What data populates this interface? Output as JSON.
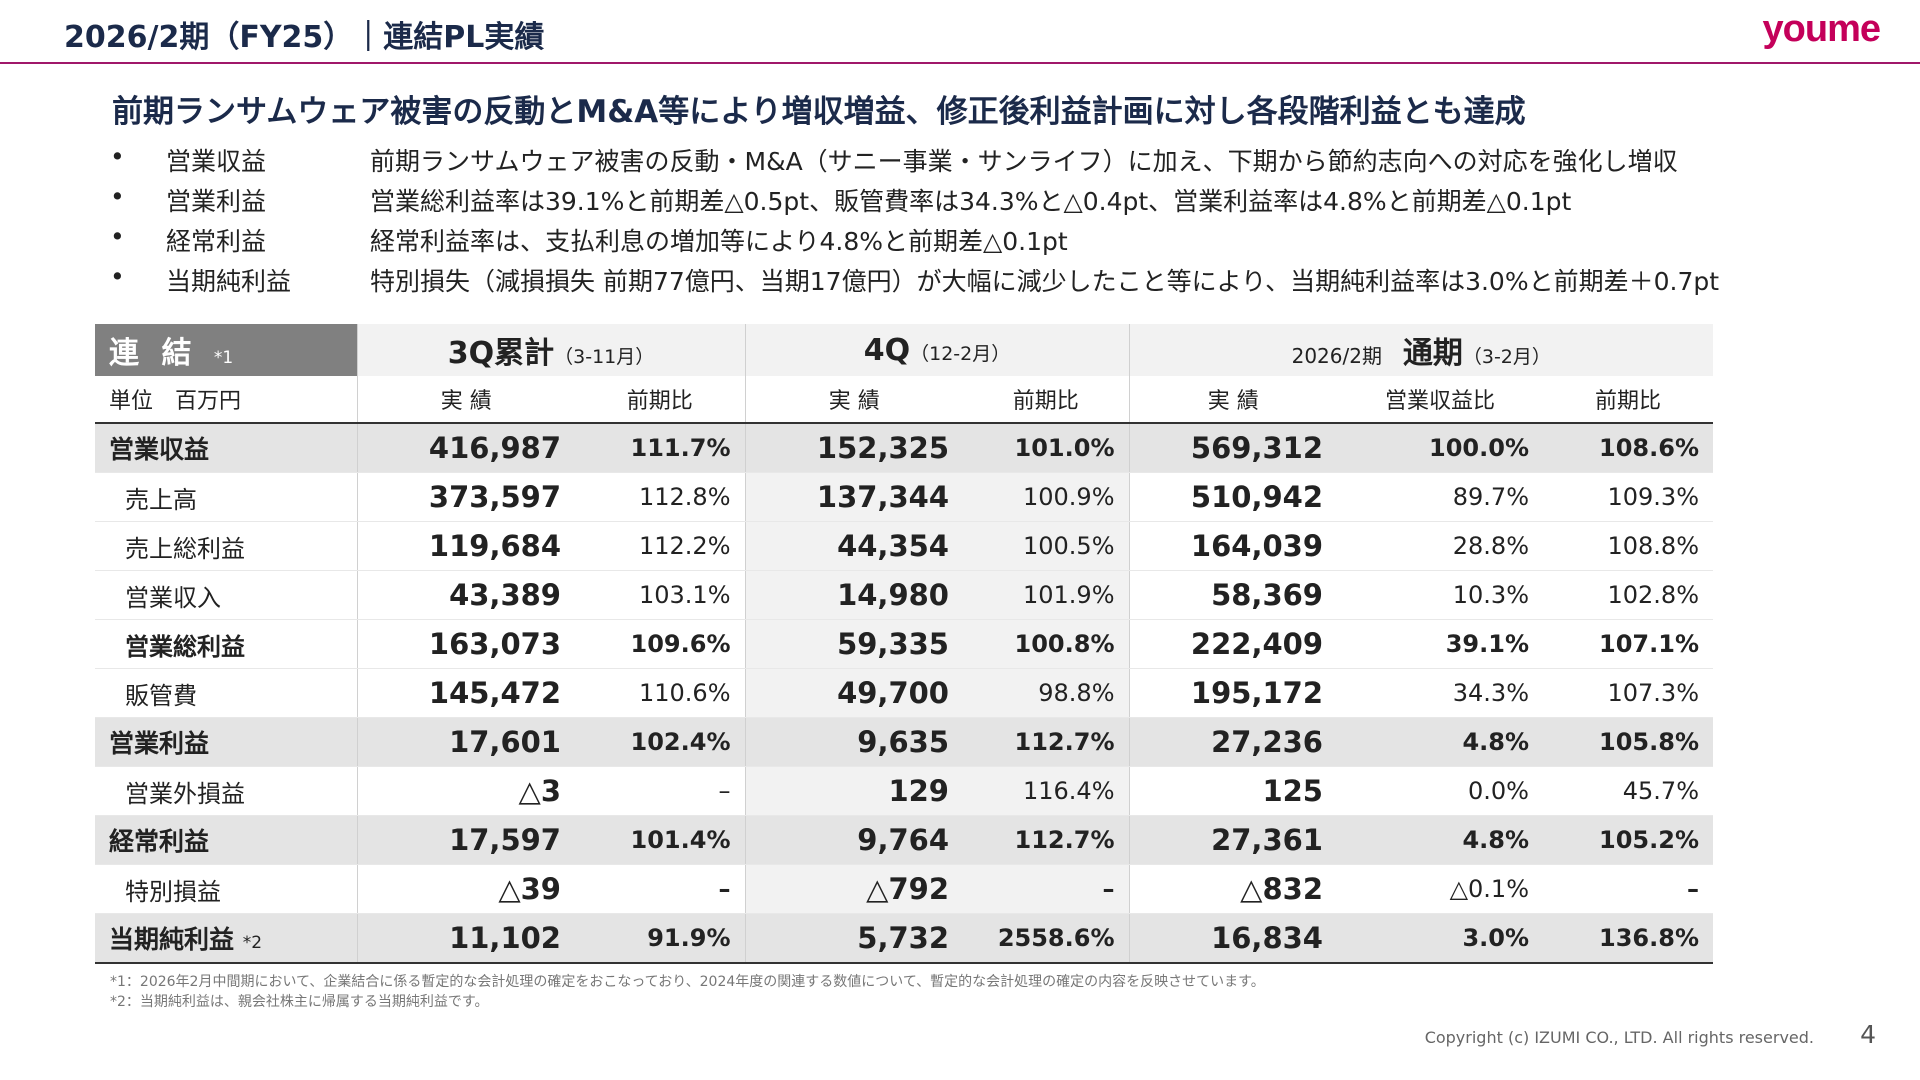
{
  "header": {
    "title": "2026/2期（FY25）｜連結PL実績",
    "logo": "youme"
  },
  "headline": "前期ランサムウェア被害の反動とM&A等により増収増益、修正後利益計画に対し各段階利益とも達成",
  "bullets": [
    {
      "dot": "•",
      "label": "営業収益",
      "text": "前期ランサムウェア被害の反動・M&A（サニー事業・サンライフ）に加え、下期から節約志向への対応を強化し増収"
    },
    {
      "dot": "•",
      "label": "営業利益",
      "text": "営業総利益率は39.1%と前期差△0.5pt、販管費率は34.3%と△0.4pt、営業利益率は4.8%と前期差△0.1pt"
    },
    {
      "dot": "•",
      "label": "経常利益",
      "text": "経常利益率は、支払利息の増加等により4.8%と前期差△0.1pt"
    },
    {
      "dot": "•",
      "label": "当期純利益",
      "text": "特別損失（減損損失 前期77億円、当期17億円）が大幅に減少したこと等により、当期純利益率は3.0%と前期差＋0.7pt"
    }
  ],
  "table": {
    "corner_label": "連 結",
    "corner_note": "*1",
    "unit_label": "単位　百万円",
    "groups": {
      "q3": {
        "title": "3Q累計",
        "sub": "（3-11月）"
      },
      "q4": {
        "title": "4Q",
        "sub": "（12-2月）"
      },
      "fy": {
        "year": "2026/2期",
        "title": "通期",
        "sub": "（3-2月）"
      }
    },
    "col_labels": {
      "actual": "実 績",
      "yoy": "前期比",
      "ratio": "営業収益比"
    },
    "rows": [
      {
        "label": "営業収益",
        "note": "",
        "q3": "416,987",
        "q3_yoy": "111.7%",
        "q4": "152,325",
        "q4_yoy": "101.0%",
        "fy": "569,312",
        "fy_ratio": "100.0%",
        "fy_yoy": "108.6%"
      },
      {
        "label": "売上高",
        "note": "",
        "q3": "373,597",
        "q3_yoy": "112.8%",
        "q4": "137,344",
        "q4_yoy": "100.9%",
        "fy": "510,942",
        "fy_ratio": "89.7%",
        "fy_yoy": "109.3%"
      },
      {
        "label": "売上総利益",
        "note": "",
        "q3": "119,684",
        "q3_yoy": "112.2%",
        "q4": "44,354",
        "q4_yoy": "100.5%",
        "fy": "164,039",
        "fy_ratio": "28.8%",
        "fy_yoy": "108.8%"
      },
      {
        "label": "営業収入",
        "note": "",
        "q3": "43,389",
        "q3_yoy": "103.1%",
        "q4": "14,980",
        "q4_yoy": "101.9%",
        "fy": "58,369",
        "fy_ratio": "10.3%",
        "fy_yoy": "102.8%"
      },
      {
        "label": "営業総利益",
        "note": "",
        "q3": "163,073",
        "q3_yoy": "109.6%",
        "q4": "59,335",
        "q4_yoy": "100.8%",
        "fy": "222,409",
        "fy_ratio": "39.1%",
        "fy_yoy": "107.1%"
      },
      {
        "label": "販管費",
        "note": "",
        "q3": "145,472",
        "q3_yoy": "110.6%",
        "q4": "49,700",
        "q4_yoy": "98.8%",
        "fy": "195,172",
        "fy_ratio": "34.3%",
        "fy_yoy": "107.3%"
      },
      {
        "label": "営業利益",
        "note": "",
        "q3": "17,601",
        "q3_yoy": "102.4%",
        "q4": "9,635",
        "q4_yoy": "112.7%",
        "fy": "27,236",
        "fy_ratio": "4.8%",
        "fy_yoy": "105.8%"
      },
      {
        "label": "営業外損益",
        "note": "",
        "q3": "△3",
        "q3_yoy": "–",
        "q4": "129",
        "q4_yoy": "116.4%",
        "fy": "125",
        "fy_ratio": "0.0%",
        "fy_yoy": "45.7%"
      },
      {
        "label": "経常利益",
        "note": "",
        "q3": "17,597",
        "q3_yoy": "101.4%",
        "q4": "9,764",
        "q4_yoy": "112.7%",
        "fy": "27,361",
        "fy_ratio": "4.8%",
        "fy_yoy": "105.2%"
      },
      {
        "label": "特別損益",
        "note": "",
        "q3": "△39",
        "q3_yoy": "–",
        "q4": "△792",
        "q4_yoy": "–",
        "fy": "△832",
        "fy_ratio": "△0.1%",
        "fy_yoy": "–"
      },
      {
        "label": "当期純利益",
        "note": "*2",
        "q3": "11,102",
        "q3_yoy": "91.9%",
        "q4": "5,732",
        "q4_yoy": "2558.6%",
        "fy": "16,834",
        "fy_ratio": "3.0%",
        "fy_yoy": "136.8%"
      }
    ]
  },
  "footnotes": [
    "*1：2026年2月中間期において、企業結合に係る暫定的な会計処理の確定をおこなっており、2024年度の関連する数値について、暫定的な会計処理の確定の内容を反映させています。",
    "*2：当期純利益は、親会社株主に帰属する当期純利益です。"
  ],
  "footer": {
    "copyright": "Copyright (c) IZUMI CO., LTD. All rights reserved.",
    "page_number": "4"
  }
}
